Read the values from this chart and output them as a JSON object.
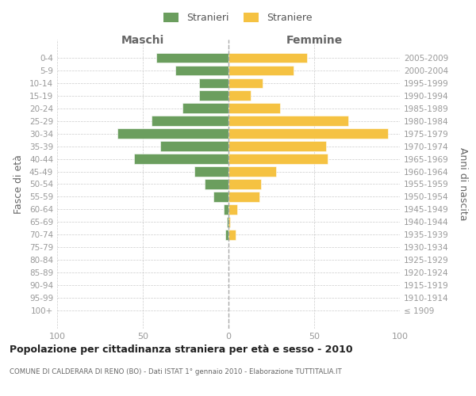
{
  "age_groups_bottom_to_top": [
    "0-4",
    "5-9",
    "10-14",
    "15-19",
    "20-24",
    "25-29",
    "30-34",
    "35-39",
    "40-44",
    "45-49",
    "50-54",
    "55-59",
    "60-64",
    "65-69",
    "70-74",
    "75-79",
    "80-84",
    "85-89",
    "90-94",
    "95-99",
    "100+"
  ],
  "birth_years_bottom_to_top": [
    "2005-2009",
    "2000-2004",
    "1995-1999",
    "1990-1994",
    "1985-1989",
    "1980-1984",
    "1975-1979",
    "1970-1974",
    "1965-1969",
    "1960-1964",
    "1955-1959",
    "1950-1954",
    "1945-1949",
    "1940-1944",
    "1935-1939",
    "1930-1934",
    "1925-1929",
    "1920-1924",
    "1915-1919",
    "1910-1914",
    "≤ 1909"
  ],
  "maschi_bottom_to_top": [
    42,
    31,
    17,
    17,
    27,
    45,
    65,
    40,
    55,
    20,
    14,
    9,
    3,
    1,
    2,
    0,
    0,
    0,
    0,
    0,
    0
  ],
  "femmine_bottom_to_top": [
    46,
    38,
    20,
    13,
    30,
    70,
    93,
    57,
    58,
    28,
    19,
    18,
    5,
    1,
    4,
    0,
    0,
    0,
    0,
    0,
    0
  ],
  "color_maschi": "#6b9e5e",
  "color_femmine": "#f5c242",
  "title": "Popolazione per cittadinanza straniera per età e sesso - 2010",
  "subtitle": "COMUNE DI CALDERARA DI RENO (BO) - Dati ISTAT 1° gennaio 2010 - Elaborazione TUTTITALIA.IT",
  "label_maschi_top": "Maschi",
  "label_femmine_top": "Femmine",
  "ylabel_left": "Fasce di età",
  "ylabel_right": "Anni di nascita",
  "legend_maschi": "Stranieri",
  "legend_femmine": "Straniere",
  "xlim": 100,
  "background_color": "#ffffff",
  "grid_color": "#cccccc",
  "tick_color": "#999999",
  "label_color": "#666666",
  "title_color": "#222222",
  "subtitle_color": "#666666"
}
